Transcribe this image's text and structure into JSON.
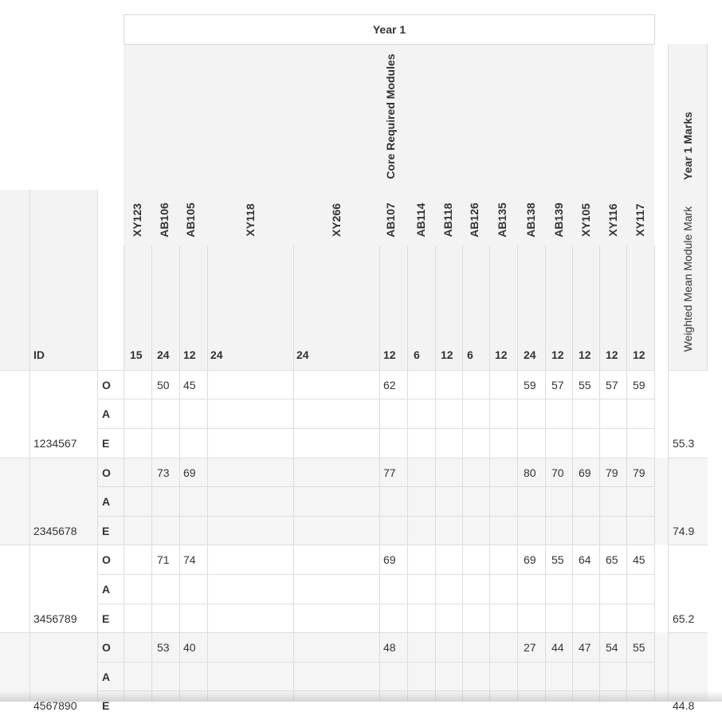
{
  "header": {
    "year_group": "Year 1",
    "core_group": "Core Required Modules",
    "id_label": "ID",
    "year_marks": "Year 1 Marks",
    "weighted_mean": "Weighted Mean Module Mark"
  },
  "modules": [
    {
      "code": "XY123",
      "credits": "15"
    },
    {
      "code": "AB106",
      "credits": "24"
    },
    {
      "code": "AB105",
      "credits": "12"
    },
    {
      "code": "XY118",
      "credits": "24"
    },
    {
      "code": "XY266",
      "credits": "24"
    },
    {
      "code": "AB107",
      "credits": "12"
    },
    {
      "code": "AB114",
      "credits": "6"
    },
    {
      "code": "AB118",
      "credits": "12"
    },
    {
      "code": "AB126",
      "credits": "6"
    },
    {
      "code": "AB135",
      "credits": "12"
    },
    {
      "code": "AB138",
      "credits": "24"
    },
    {
      "code": "AB139",
      "credits": "12"
    },
    {
      "code": "XY105",
      "credits": "12"
    },
    {
      "code": "XY116",
      "credits": "12"
    },
    {
      "code": "XY117",
      "credits": "12"
    }
  ],
  "students": [
    {
      "id": "1234567",
      "mean": "55.3",
      "rows": [
        {
          "type": "O",
          "marks": [
            "",
            "50",
            "45",
            "",
            "",
            "62",
            "",
            "",
            "",
            "",
            "59",
            "57",
            "55",
            "57",
            "59"
          ]
        },
        {
          "type": "A",
          "marks": [
            "",
            "",
            "",
            "",
            "",
            "",
            "",
            "",
            "",
            "",
            "",
            "",
            "",
            "",
            ""
          ]
        },
        {
          "type": "E",
          "marks": [
            "",
            "",
            "",
            "",
            "",
            "",
            "",
            "",
            "",
            "",
            "",
            "",
            "",
            "",
            ""
          ]
        }
      ]
    },
    {
      "id": "2345678",
      "mean": "74.9",
      "rows": [
        {
          "type": "O",
          "marks": [
            "",
            "73",
            "69",
            "",
            "",
            "77",
            "",
            "",
            "",
            "",
            "80",
            "70",
            "69",
            "79",
            "79"
          ]
        },
        {
          "type": "A",
          "marks": [
            "",
            "",
            "",
            "",
            "",
            "",
            "",
            "",
            "",
            "",
            "",
            "",
            "",
            "",
            ""
          ]
        },
        {
          "type": "E",
          "marks": [
            "",
            "",
            "",
            "",
            "",
            "",
            "",
            "",
            "",
            "",
            "",
            "",
            "",
            "",
            ""
          ]
        }
      ]
    },
    {
      "id": "3456789",
      "mean": "65.2",
      "rows": [
        {
          "type": "O",
          "marks": [
            "",
            "71",
            "74",
            "",
            "",
            "69",
            "",
            "",
            "",
            "",
            "69",
            "55",
            "64",
            "65",
            "45"
          ]
        },
        {
          "type": "A",
          "marks": [
            "",
            "",
            "",
            "",
            "",
            "",
            "",
            "",
            "",
            "",
            "",
            "",
            "",
            "",
            ""
          ]
        },
        {
          "type": "E",
          "marks": [
            "",
            "",
            "",
            "",
            "",
            "",
            "",
            "",
            "",
            "",
            "",
            "",
            "",
            "",
            ""
          ]
        }
      ]
    },
    {
      "id": "4567890",
      "mean": "44.8",
      "rows": [
        {
          "type": "O",
          "marks": [
            "",
            "53",
            "40",
            "",
            "",
            "48",
            "",
            "",
            "",
            "",
            "27",
            "44",
            "47",
            "54",
            "55"
          ]
        },
        {
          "type": "A",
          "marks": [
            "",
            "",
            "",
            "",
            "",
            "",
            "",
            "",
            "",
            "",
            "",
            "",
            "",
            "",
            ""
          ]
        },
        {
          "type": "E",
          "marks": [
            "",
            "",
            "",
            "",
            "",
            "",
            "",
            "",
            "",
            "",
            "",
            "",
            "",
            "",
            ""
          ]
        }
      ]
    }
  ]
}
